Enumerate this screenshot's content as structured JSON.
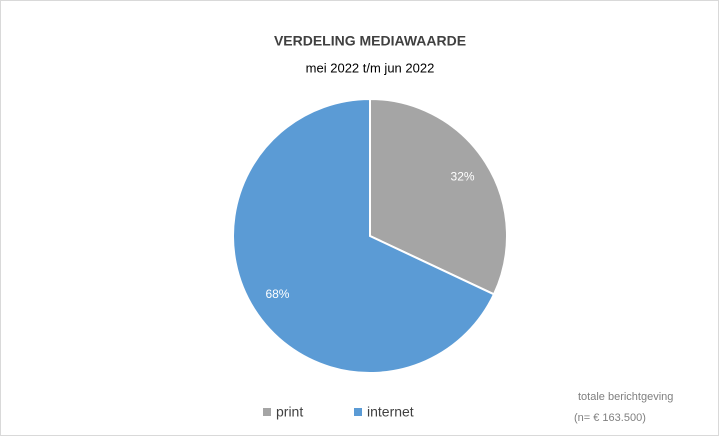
{
  "chart_data": {
    "type": "pie",
    "title": "VERDELING MEDIAWAARDE",
    "subtitle": "mei 2022 t/m jun 2022",
    "categories": [
      "print",
      "internet"
    ],
    "values": [
      32,
      68
    ],
    "value_labels": [
      "32%",
      "68%"
    ],
    "colors": [
      "#a5a5a5",
      "#5b9bd5"
    ],
    "legend": "bottom",
    "annotations": [
      "totale berichtgeving",
      "(n= € 163.500)"
    ]
  }
}
